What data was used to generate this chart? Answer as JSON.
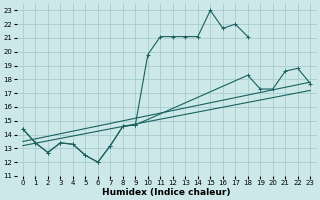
{
  "xlabel": "Humidex (Indice chaleur)",
  "bg_color": "#cce8e8",
  "grid_color": "#aacccc",
  "line_color": "#1a6060",
  "xlim": [
    -0.5,
    23.5
  ],
  "ylim": [
    11,
    23.5
  ],
  "yticks": [
    11,
    12,
    13,
    14,
    15,
    16,
    17,
    18,
    19,
    20,
    21,
    22,
    23
  ],
  "xticks": [
    0,
    1,
    2,
    3,
    4,
    5,
    6,
    7,
    8,
    9,
    10,
    11,
    12,
    13,
    14,
    15,
    16,
    17,
    18,
    19,
    20,
    21,
    22,
    23
  ],
  "line1_x": [
    0,
    1,
    2,
    3,
    4,
    5,
    6,
    7,
    8,
    9,
    10,
    11,
    12,
    13,
    14,
    15,
    16,
    17,
    18
  ],
  "line1_y": [
    14.4,
    13.4,
    12.7,
    13.4,
    13.3,
    12.5,
    12.0,
    13.2,
    14.6,
    14.7,
    19.8,
    21.1,
    21.1,
    21.1,
    21.1,
    23.0,
    21.7,
    22.0,
    21.1
  ],
  "line2_x": [
    0,
    1,
    2,
    3,
    4,
    5,
    6,
    7,
    8,
    9,
    18,
    19,
    20,
    21,
    22,
    23
  ],
  "line2_y": [
    14.4,
    13.4,
    12.7,
    13.4,
    13.3,
    12.5,
    12.0,
    13.2,
    14.6,
    14.7,
    18.3,
    17.3,
    17.3,
    18.6,
    18.8,
    17.7
  ],
  "line3_x": [
    0,
    23
  ],
  "line3_y": [
    13.5,
    17.8
  ],
  "line4_x": [
    0,
    23
  ],
  "line4_y": [
    13.2,
    17.2
  ],
  "xlabel_fontsize": 6.5,
  "tick_fontsize": 5.0
}
